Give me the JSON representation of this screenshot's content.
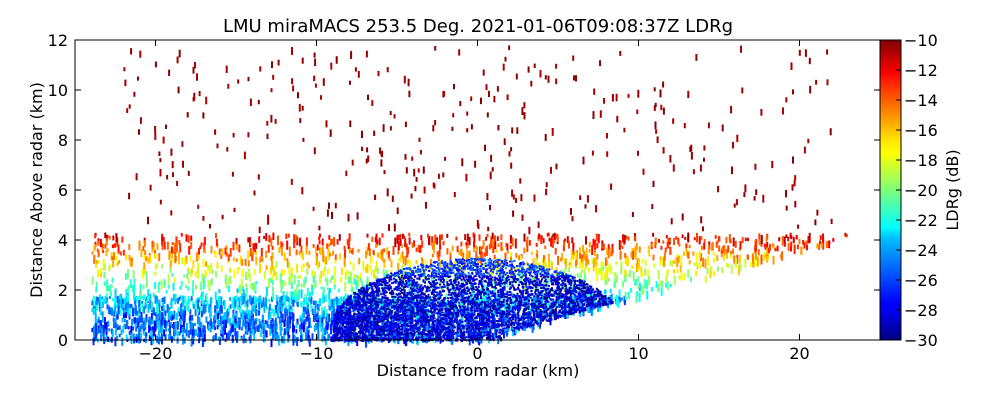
{
  "chart_data": {
    "type": "heatmap",
    "title": "LMU miraMACS 253.5 Deg. 2021-01-06T09:08:37Z  LDRg",
    "xlabel": "Distance from radar (km)",
    "ylabel": "Distance Above radar  (km)",
    "xlim": [
      -25,
      25
    ],
    "ylim": [
      0,
      12
    ],
    "x_ticks": [
      -20,
      -10,
      0,
      10,
      20
    ],
    "y_ticks": [
      0,
      2,
      4,
      6,
      8,
      10,
      12
    ],
    "colorbar": {
      "label": "LDRg (dB)",
      "range": [
        -30,
        -10
      ],
      "ticks": [
        -30,
        -28,
        -26,
        -24,
        -22,
        -20,
        -18,
        -16,
        -14,
        -12,
        -10
      ],
      "colormap": "jet"
    },
    "scan": {
      "description": "RHI scan, LDRg field",
      "sector_upper_edge_right": [
        [
          0,
          0
        ],
        [
          23,
          4.4
        ]
      ],
      "regions": [
        {
          "name": "core",
          "x_range": [
            -9,
            9
          ],
          "height_range": [
            0,
            3.2
          ],
          "ldr_range_db": [
            -30,
            -27
          ]
        },
        {
          "name": "low-ldr layer",
          "x_range": [
            -24,
            12
          ],
          "height_range": [
            0,
            1.8
          ],
          "ldr_range_db": [
            -28,
            -23
          ]
        },
        {
          "name": "bright band region",
          "x_range": [
            -24,
            23
          ],
          "height_range": [
            2,
            4.3
          ],
          "ldr_range_db": [
            -22,
            -14
          ]
        },
        {
          "name": "sparse echoes aloft",
          "x_range": [
            -22,
            22
          ],
          "height_range": [
            4.5,
            12
          ],
          "ldr_range_db": [
            -11,
            -10
          ]
        }
      ]
    }
  }
}
